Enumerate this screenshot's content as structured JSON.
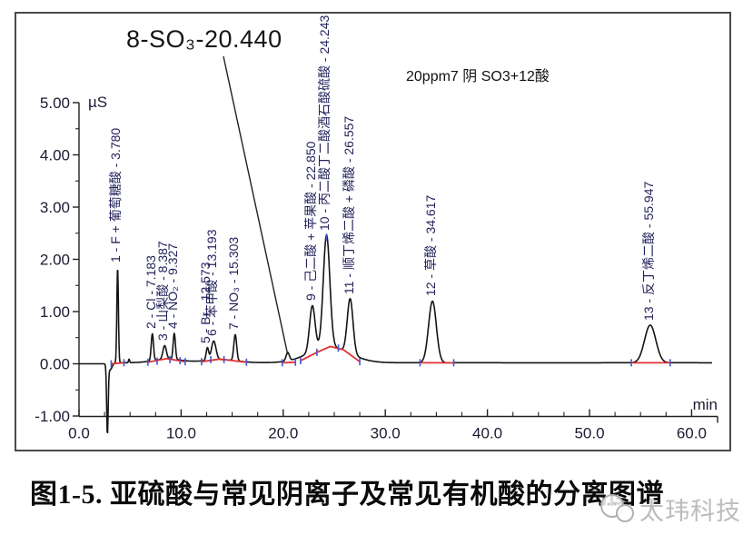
{
  "figure": {
    "caption": "图1-5. 亚硫酸与常见阴离子及常见有机酸的分离图谱",
    "watermark_text": "太玮科技"
  },
  "chart_data": {
    "type": "line",
    "title": "20ppm7 阴 SO3+12酸",
    "xlabel": "min",
    "ylabel": "µS",
    "xlim": [
      0,
      62.5
    ],
    "ylim": [
      -1.0,
      5.0
    ],
    "grid": false,
    "x_major_ticks": [
      0,
      10,
      20,
      30,
      40,
      50,
      60
    ],
    "x_tick_labels": [
      "0.0",
      "10.0",
      "20.0",
      "30.0",
      "40.0",
      "50.0",
      "60.0"
    ],
    "x_minor_step": 2.5,
    "y_major_ticks": [
      -1,
      0,
      1,
      2,
      3,
      4,
      5
    ],
    "y_tick_labels": [
      "-1.00",
      "0.00",
      "1.00",
      "2.00",
      "3.00",
      "4.00",
      "5.00"
    ],
    "y_minor_step": 0.5,
    "trace_color": "#141414",
    "baseline_color": "#e03131",
    "marker_color": "#4455cc",
    "label_color": "#23235c",
    "annotation": {
      "text": "8-SO₃-20.440",
      "peak_number": 8,
      "target_min": 20.44,
      "target_us": 0.18
    },
    "peaks": [
      {
        "number": 1,
        "label": "1 - F + 葡萄糖酸 - 3.780",
        "rt_min": 3.78,
        "height_us": 1.83,
        "sigma_min": 0.075
      },
      {
        "number": 2,
        "label": "2 - Cl - 7.183",
        "rt_min": 7.183,
        "height_us": 0.52,
        "sigma_min": 0.11
      },
      {
        "number": 3,
        "label": "3 - 山梨酸 - 8.387",
        "rt_min": 8.387,
        "height_us": 0.26,
        "sigma_min": 0.17
      },
      {
        "number": 4,
        "label": "4 - NO₂ - 9.327",
        "rt_min": 9.327,
        "height_us": 0.5,
        "sigma_min": 0.11
      },
      {
        "number": 5,
        "label": "5 - Br - 12.573",
        "rt_min": 12.573,
        "height_us": 0.24,
        "sigma_min": 0.12
      },
      {
        "number": 6,
        "label": "6 - 苯甲酸 - 13.193",
        "rt_min": 13.193,
        "height_us": 0.36,
        "sigma_min": 0.22
      },
      {
        "number": 7,
        "label": "7 - NO₃ - 15.303",
        "rt_min": 15.303,
        "height_us": 0.5,
        "sigma_min": 0.14
      },
      {
        "number": 8,
        "label": "8 - SO₃ - 20.440",
        "rt_min": 20.44,
        "height_us": 0.16,
        "sigma_min": 0.16,
        "labeled_by": "annotation"
      },
      {
        "number": 9,
        "label": "9 - 己二酸 + 苹果酸 - 22.850",
        "rt_min": 22.85,
        "height_us": 0.88,
        "sigma_min": 0.27
      },
      {
        "number": 10,
        "label": "10 - 丙二酸丁二酸酒石酸硫酸 - 24.243",
        "rt_min": 24.243,
        "height_us": 2.15,
        "sigma_min": 0.32
      },
      {
        "number": 11,
        "label": "11 - 顺丁烯二酸 + 磷酸 - 26.557",
        "rt_min": 26.557,
        "height_us": 1.05,
        "sigma_min": 0.28
      },
      {
        "number": 12,
        "label": "12 - 草酸 - 34.617",
        "rt_min": 34.617,
        "height_us": 1.18,
        "sigma_min": 0.38
      },
      {
        "number": 13,
        "label": "13 - 反丁烯二酸 - 55.947",
        "rt_min": 55.947,
        "height_us": 0.72,
        "sigma_min": 0.55
      }
    ],
    "injection_dip": {
      "center_min": 2.78,
      "sigma_min": 0.075,
      "depth_us": -1.32,
      "tail": {
        "center_min": 3.05,
        "sigma_min": 0.18,
        "depth_us": -0.12
      }
    },
    "baseline_offset_us": 0.02,
    "baseline_humps": [
      {
        "center_min": 8.7,
        "sigma_min": 1.4,
        "amp_us": 0.07
      },
      {
        "center_min": 13.8,
        "sigma_min": 1.6,
        "amp_us": 0.06
      },
      {
        "center_min": 24.5,
        "sigma_min": 2.0,
        "amp_us": 0.3
      }
    ],
    "minor_features": [
      {
        "center_min": 4.9,
        "sigma_min": 0.05,
        "amp_us": 0.07
      }
    ],
    "integration_baseline_segments": [
      [
        [
          3.15,
          0.0
        ],
        [
          4.4,
          0.02
        ]
      ],
      [
        [
          6.75,
          0.03
        ],
        [
          8.6,
          0.1
        ],
        [
          10.4,
          0.04
        ]
      ],
      [
        [
          12.0,
          0.04
        ],
        [
          13.8,
          0.09
        ],
        [
          16.4,
          0.03
        ]
      ],
      [
        [
          19.9,
          0.02
        ],
        [
          21.2,
          0.03
        ]
      ],
      [
        [
          21.7,
          0.06
        ],
        [
          23.3,
          0.22
        ],
        [
          24.6,
          0.33
        ],
        [
          25.9,
          0.27
        ],
        [
          27.5,
          0.04
        ]
      ],
      [
        [
          33.4,
          0.02
        ],
        [
          36.7,
          0.02
        ]
      ],
      [
        [
          54.1,
          0.02
        ],
        [
          57.9,
          0.02
        ]
      ]
    ],
    "peak_boundary_marks": [
      [
        3.15,
        0.0
      ],
      [
        4.4,
        0.02
      ],
      [
        6.75,
        0.03
      ],
      [
        7.65,
        0.05
      ],
      [
        8.9,
        0.08
      ],
      [
        9.9,
        0.06
      ],
      [
        10.4,
        0.04
      ],
      [
        12.0,
        0.04
      ],
      [
        12.9,
        0.08
      ],
      [
        14.2,
        0.08
      ],
      [
        16.4,
        0.03
      ],
      [
        19.9,
        0.02
      ],
      [
        21.2,
        0.03
      ],
      [
        21.7,
        0.06
      ],
      [
        23.3,
        0.22
      ],
      [
        25.4,
        0.3
      ],
      [
        27.5,
        0.04
      ],
      [
        33.4,
        0.02
      ],
      [
        36.7,
        0.02
      ],
      [
        54.1,
        0.02
      ],
      [
        57.9,
        0.02
      ],
      [
        24.243,
        2.42
      ]
    ]
  }
}
